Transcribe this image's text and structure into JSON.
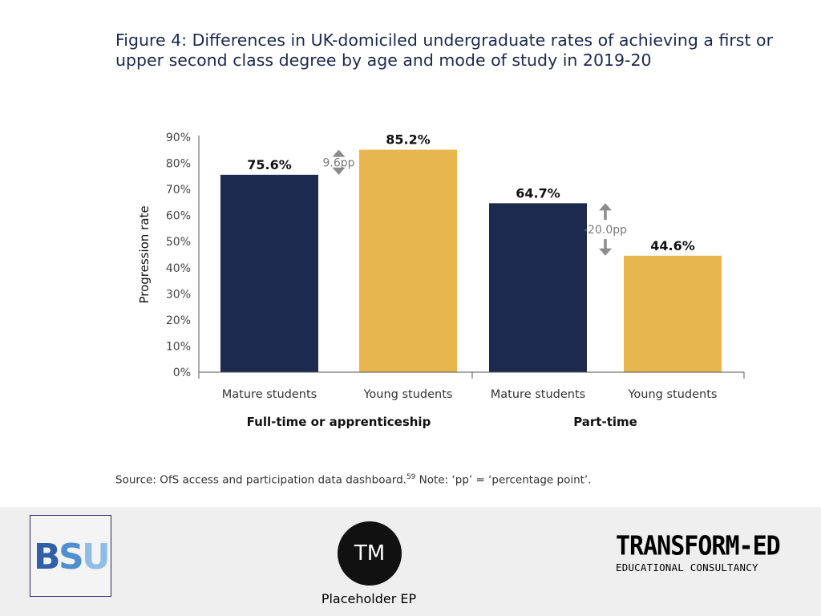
{
  "slide": {
    "title": "Figure 4: Differences in UK-domiciled undergraduate rates of achieving a first or upper second class degree by age and mode of study in 2019-20",
    "source_prefix": "Source: OfS access and participation data dashboard.",
    "source_footnote": "59",
    "source_suffix": " Note: ‘pp’ = ‘percentage point’."
  },
  "chart_data": {
    "type": "bar",
    "title": "",
    "ylabel": "Progression rate",
    "xlabel": "",
    "ylim": [
      0,
      90
    ],
    "yticks": [
      0,
      10,
      20,
      30,
      40,
      50,
      60,
      70,
      80,
      90
    ],
    "ytick_labels": [
      "0%",
      "10%",
      "20%",
      "30%",
      "40%",
      "50%",
      "60%",
      "70%",
      "80%",
      "90%"
    ],
    "grid": false,
    "legend": "none",
    "groups": [
      "Full-time or apprenticeship",
      "Part-time"
    ],
    "categories": [
      "Mature students",
      "Young students",
      "Mature students",
      "Young students"
    ],
    "group_of_category": [
      0,
      0,
      1,
      1
    ],
    "values": [
      75.6,
      85.2,
      64.7,
      44.6
    ],
    "value_labels": [
      "75.6%",
      "85.2%",
      "64.7%",
      "44.6%"
    ],
    "bar_colors": [
      "#1b2a4e",
      "#e8b64f",
      "#1b2a4e",
      "#e8b64f"
    ],
    "gap_annotations": [
      {
        "label": "9.6pp",
        "from": 75.6,
        "to": 85.2,
        "between": [
          0,
          1
        ]
      },
      {
        "label": "-20.0pp",
        "from": 64.7,
        "to": 44.6,
        "between": [
          2,
          3
        ]
      }
    ],
    "colors": {
      "mature": "#1b2a4e",
      "young": "#e8b64f",
      "arrow": "#8c8c8c"
    }
  },
  "footer": {
    "bsu_text": "BSU",
    "bsu_colors": [
      "#2f5fa8",
      "#4f8fd0",
      "#8fbde8"
    ],
    "tm_logo_text": "TM",
    "tm_caption": "Placeholder EP",
    "transform_name": "TRANSFORM-ED",
    "transform_sub": "EDUCATIONAL CONSULTANCY"
  }
}
